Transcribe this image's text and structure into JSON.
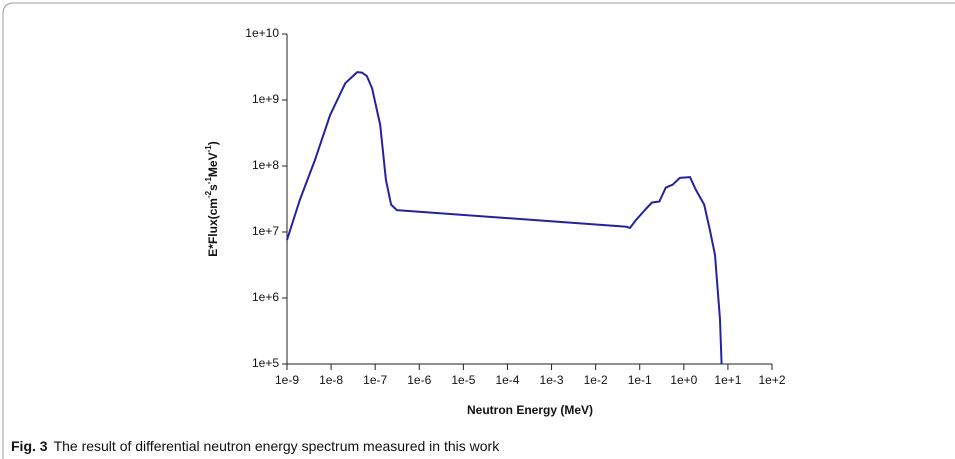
{
  "chart_data": {
    "type": "line",
    "xlabel": "Neutron Energy (MeV)",
    "ylabel_parts": [
      "E*Flux(cm",
      "-2",
      "s",
      "-1",
      "MeV",
      "-1",
      ")"
    ],
    "caption_label": "Fig. 3",
    "caption": "The result of differential neutron energy spectrum measured in this work",
    "xscale": "log",
    "yscale": "log",
    "color": "#2323a0",
    "xlim": [
      1e-09,
      100
    ],
    "ylim": [
      100000,
      10000000000
    ],
    "xticks": [
      {
        "value": 1e-09,
        "label": "1e-9"
      },
      {
        "value": 1e-08,
        "label": "1e-8"
      },
      {
        "value": 1e-07,
        "label": "1e-7"
      },
      {
        "value": 1e-06,
        "label": "1e-6"
      },
      {
        "value": 1e-05,
        "label": "1e-5"
      },
      {
        "value": 0.0001,
        "label": "1e-4"
      },
      {
        "value": 0.001,
        "label": "1e-3"
      },
      {
        "value": 0.01,
        "label": "1e-2"
      },
      {
        "value": 0.1,
        "label": "1e-1"
      },
      {
        "value": 1,
        "label": "1e+0"
      },
      {
        "value": 10,
        "label": "1e+1"
      },
      {
        "value": 100,
        "label": "1e+2"
      }
    ],
    "yticks": [
      {
        "value": 100000,
        "label": "1e+5"
      },
      {
        "value": 1000000,
        "label": "1e+6"
      },
      {
        "value": 10000000,
        "label": "1e+7"
      },
      {
        "value": 100000000,
        "label": "1e+8"
      },
      {
        "value": 1000000000,
        "label": "1e+9"
      },
      {
        "value": 10000000000,
        "label": "1e+10"
      }
    ],
    "x": [
      1e-09,
      1.95e-09,
      4.3e-09,
      9.5e-09,
      2.1e-08,
      3.9e-08,
      5e-08,
      6.5e-08,
      8.5e-08,
      1.3e-07,
      1.75e-07,
      2.3e-07,
      3.1e-07,
      4.8e-07,
      0.051,
      0.06,
      0.081,
      0.13,
      0.19,
      0.28,
      0.39,
      0.56,
      0.81,
      1.38,
      1.86,
      2.9,
      3.9,
      5.1,
      6.6,
      7.2
    ],
    "values": [
      7600000,
      30500000,
      123000000,
      590000000,
      1800000000,
      2650000000,
      2600000000,
      2300000000,
      1500000000,
      420000000,
      62000000,
      26000000,
      21500000,
      21000000,
      12000000,
      11500000,
      15000000,
      21500000,
      28000000,
      29000000,
      47000000,
      52000000,
      66000000,
      68000000,
      44000000,
      26000000,
      10700000,
      4500000,
      470000,
      100000
    ]
  }
}
